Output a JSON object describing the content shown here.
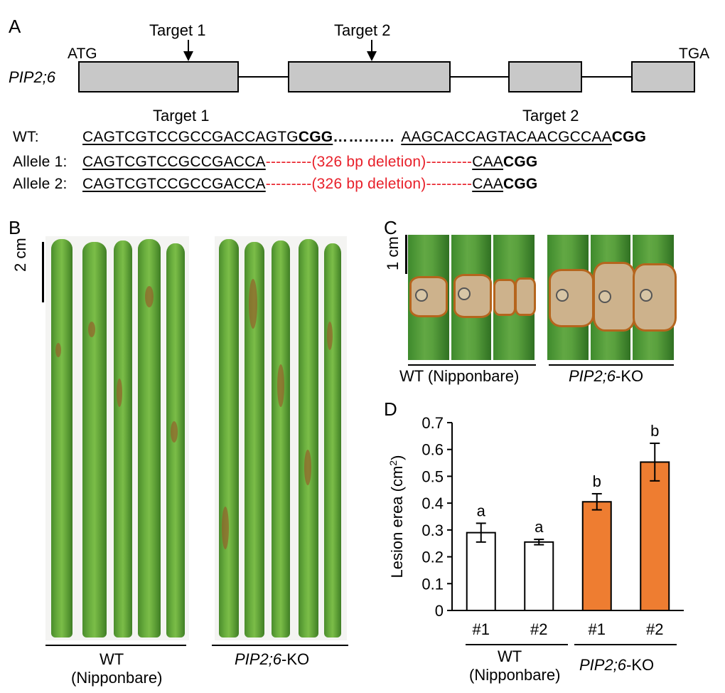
{
  "panelA": {
    "label": "A",
    "gene": "PIP2;6",
    "start_codon": "ATG",
    "stop_codon": "TGA",
    "target1": "Target 1",
    "target2": "Target 2",
    "seq_target1_label": "Target 1",
    "seq_target2_label": "Target 2",
    "wt_label": "WT:",
    "wt_seq1": "CAGTCGTCCGCCGACCAGTG",
    "wt_pam1": "CGG",
    "wt_dots": "…………",
    "wt_seq2": "AAGCACCAGTACAACGCCAA",
    "wt_pam2": "CGG",
    "allele1_label": "Allele 1:",
    "allele1_seq1": "CAGTCGTCCGCCGACCA",
    "allele1_deletion": "---------(326 bp deletion)---------",
    "allele1_seq2": "CAA",
    "allele1_pam": "CGG",
    "allele2_label": "Allele 2:",
    "allele2_seq1": "CAGTCGTCCGCCGACCA",
    "allele2_deletion": "---------(326 bp deletion)---------",
    "allele2_seq2": "CAA",
    "allele2_pam": "CGG"
  },
  "panelB": {
    "label": "B",
    "scale": "2 cm",
    "group1_line1": "WT",
    "group1_line2": "(Nipponbare)",
    "group2_gene": "PIP2;6",
    "group2_suffix": "-KO"
  },
  "panelC": {
    "label": "C",
    "scale": "1 cm",
    "group1": "WT (Nipponbare)",
    "group2_gene": "PIP2;6",
    "group2_suffix": "-KO"
  },
  "panelD": {
    "label": "D",
    "group1_line1": "WT",
    "group1_line2": "(Nipponbare)",
    "group2_gene": "PIP2;6",
    "group2_suffix": "-KO"
  },
  "chart_data": {
    "type": "bar",
    "categories": [
      "#1",
      "#2",
      "#1",
      "#2"
    ],
    "values": [
      0.29,
      0.255,
      0.405,
      0.553
    ],
    "errors": [
      0.035,
      0.01,
      0.03,
      0.07
    ],
    "significance": [
      "a",
      "a",
      "b",
      "b"
    ],
    "bar_colors": [
      "#ffffff",
      "#ffffff",
      "#ee7d31",
      "#ee7d31"
    ],
    "ylabel_main": "Lesion erea (cm",
    "ylabel_sup": "2",
    "ylabel_close": ")",
    "ylim": [
      0,
      0.7
    ],
    "yticks": [
      "0",
      "0.1",
      "0.2",
      "0.3",
      "0.4",
      "0.5",
      "0.6",
      "0.7"
    ],
    "grid": false
  }
}
